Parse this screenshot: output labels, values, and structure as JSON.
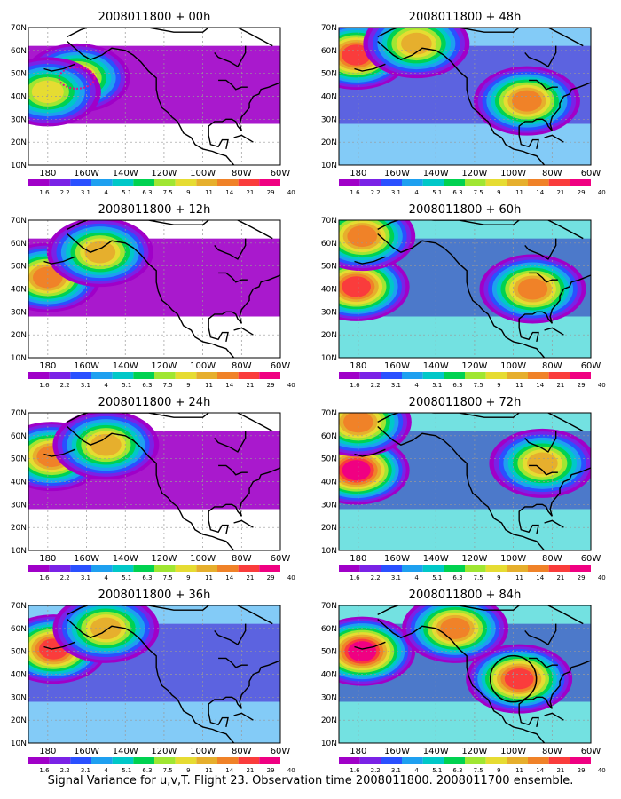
{
  "figure": {
    "caption": "Signal Variance for u,v,T. Flight 23. Observation time 2008011800. 2008011700 ensemble."
  },
  "colorbar": {
    "colors": [
      "#ffffff",
      "#a000c8",
      "#7a22e6",
      "#2a50ff",
      "#1ea0f0",
      "#00c8c8",
      "#00d250",
      "#a0e632",
      "#e6dc32",
      "#e6af2d",
      "#f08228",
      "#fa3c3c",
      "#f00082"
    ],
    "labels": [
      "1.6",
      "2.2",
      "3.1",
      "4",
      "5.1",
      "6.3",
      "7.5",
      "9",
      "11",
      "14",
      "21",
      "29",
      "40"
    ]
  },
  "chart_data": [
    {
      "type": "heatmap",
      "title": "2008011800 + 00h",
      "lead_hours": 0,
      "x_ticks": [
        "180",
        "160W",
        "140W",
        "120W",
        "100W",
        "80W",
        "60W"
      ],
      "y_ticks": [
        "10N",
        "20N",
        "30N",
        "40N",
        "50N",
        "60N",
        "70N"
      ],
      "xlim": [
        -190,
        -60
      ],
      "ylim": [
        10,
        70
      ],
      "grid": true,
      "blobs": [
        {
          "lon": -165,
          "lat": 48,
          "peak": "14",
          "shape": "dotted-ellipse"
        },
        {
          "lon": -180,
          "lat": 42,
          "peak": "11"
        }
      ]
    },
    {
      "type": "heatmap",
      "title": "2008011800 + 12h",
      "lead_hours": 12,
      "x_ticks": [
        "180",
        "160W",
        "140W",
        "120W",
        "100W",
        "80W",
        "60W"
      ],
      "y_ticks": [
        "10N",
        "20N",
        "30N",
        "40N",
        "50N",
        "60N",
        "70N"
      ],
      "xlim": [
        -190,
        -60
      ],
      "ylim": [
        10,
        70
      ],
      "grid": true,
      "blobs": [
        {
          "lon": -180,
          "lat": 45,
          "peak": "21"
        },
        {
          "lon": -153,
          "lat": 56,
          "peak": "14"
        }
      ]
    },
    {
      "type": "heatmap",
      "title": "2008011800 + 24h",
      "lead_hours": 24,
      "x_ticks": [
        "180",
        "160W",
        "140W",
        "120W",
        "100W",
        "80W",
        "60W"
      ],
      "y_ticks": [
        "10N",
        "20N",
        "30N",
        "40N",
        "50N",
        "60N",
        "70N"
      ],
      "xlim": [
        -190,
        -60
      ],
      "ylim": [
        10,
        70
      ],
      "grid": true,
      "blobs": [
        {
          "lon": -178,
          "lat": 51,
          "peak": "21"
        },
        {
          "lon": -150,
          "lat": 56,
          "peak": "14"
        }
      ]
    },
    {
      "type": "heatmap",
      "title": "2008011800 + 36h",
      "lead_hours": 36,
      "x_ticks": [
        "180",
        "160W",
        "140W",
        "120W",
        "100W",
        "80W",
        "60W"
      ],
      "y_ticks": [
        "10N",
        "20N",
        "30N",
        "40N",
        "50N",
        "60N",
        "70N"
      ],
      "xlim": [
        -190,
        -60
      ],
      "ylim": [
        10,
        70
      ],
      "grid": true,
      "blobs": [
        {
          "lon": -177,
          "lat": 51,
          "peak": "29"
        },
        {
          "lon": -150,
          "lat": 60,
          "peak": "14"
        }
      ]
    },
    {
      "type": "heatmap",
      "title": "2008011800 + 48h",
      "lead_hours": 48,
      "x_ticks": [
        "180",
        "160W",
        "140W",
        "120W",
        "100W",
        "80W",
        "60W"
      ],
      "y_ticks": [
        "10N",
        "20N",
        "30N",
        "40N",
        "50N",
        "60N",
        "70N"
      ],
      "xlim": [
        -190,
        -60
      ],
      "ylim": [
        10,
        70
      ],
      "grid": true,
      "blobs": [
        {
          "lon": -181,
          "lat": 58,
          "peak": "29"
        },
        {
          "lon": -150,
          "lat": 63,
          "peak": "14"
        },
        {
          "lon": -93,
          "lat": 38,
          "peak": "21"
        }
      ]
    },
    {
      "type": "heatmap",
      "title": "2008011800 + 60h",
      "lead_hours": 60,
      "x_ticks": [
        "180",
        "160W",
        "140W",
        "120W",
        "100W",
        "80W",
        "60W"
      ],
      "y_ticks": [
        "10N",
        "20N",
        "30N",
        "40N",
        "50N",
        "60N",
        "70N"
      ],
      "xlim": [
        -190,
        -60
      ],
      "ylim": [
        10,
        70
      ],
      "grid": true,
      "blobs": [
        {
          "lon": -181,
          "lat": 41,
          "peak": "29"
        },
        {
          "lon": -178,
          "lat": 63,
          "peak": "21"
        },
        {
          "lon": -90,
          "lat": 40,
          "peak": "21"
        }
      ]
    },
    {
      "type": "heatmap",
      "title": "2008011800 + 72h",
      "lead_hours": 72,
      "x_ticks": [
        "180",
        "160W",
        "140W",
        "120W",
        "100W",
        "80W",
        "60W"
      ],
      "y_ticks": [
        "10N",
        "20N",
        "30N",
        "40N",
        "50N",
        "60N",
        "70N"
      ],
      "xlim": [
        -190,
        -60
      ],
      "ylim": [
        10,
        70
      ],
      "grid": true,
      "blobs": [
        {
          "lon": -181,
          "lat": 45,
          "peak": "40"
        },
        {
          "lon": -180,
          "lat": 66,
          "peak": "21"
        },
        {
          "lon": -85,
          "lat": 48,
          "peak": "14"
        }
      ]
    },
    {
      "type": "heatmap",
      "title": "2008011800 + 84h",
      "lead_hours": 84,
      "x_ticks": [
        "180",
        "160W",
        "140W",
        "120W",
        "100W",
        "80W",
        "60W"
      ],
      "y_ticks": [
        "10N",
        "20N",
        "30N",
        "40N",
        "50N",
        "60N",
        "70N"
      ],
      "xlim": [
        -190,
        -60
      ],
      "ylim": [
        10,
        70
      ],
      "grid": true,
      "blobs": [
        {
          "lon": -178,
          "lat": 50,
          "peak": "40"
        },
        {
          "lon": -97,
          "lat": 38,
          "peak": "29"
        },
        {
          "lon": -130,
          "lat": 60,
          "peak": "21"
        }
      ],
      "annotation": {
        "shape": "circle",
        "lon": -100,
        "lat": 38
      }
    }
  ]
}
